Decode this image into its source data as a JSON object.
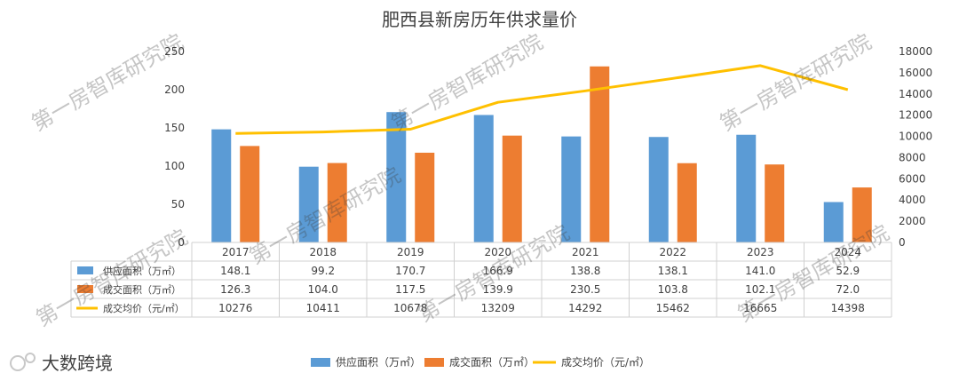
{
  "chart_data": {
    "type": "bar",
    "title": "肥西县新房历年供求量价",
    "categories": [
      "2017",
      "2018",
      "2019",
      "2020",
      "2021",
      "2022",
      "2023",
      "2024"
    ],
    "series": [
      {
        "name": "供应面积（万㎡）",
        "kind": "bar",
        "axis": "left",
        "color": "#5B9BD5",
        "values": [
          148.1,
          99.2,
          170.7,
          166.9,
          138.8,
          138.1,
          141.0,
          52.9
        ],
        "labels": [
          "148.1",
          "99.2",
          "170.7",
          "166.9",
          "138.8",
          "138.1",
          "141.0",
          "52.9"
        ]
      },
      {
        "name": "成交面积（万㎡）",
        "kind": "bar",
        "axis": "left",
        "color": "#ED7D31",
        "values": [
          126.3,
          104.0,
          117.5,
          139.9,
          230.5,
          103.8,
          102.1,
          72.0
        ],
        "labels": [
          "126.3",
          "104.0",
          "117.5",
          "139.9",
          "230.5",
          "103.8",
          "102.1",
          "72.0"
        ]
      },
      {
        "name": "成交均价（元/㎡）",
        "kind": "line",
        "axis": "right",
        "color": "#FFC000",
        "values": [
          10276,
          10411,
          10678,
          13209,
          14292,
          15462,
          16665,
          14398
        ],
        "labels": [
          "10276",
          "10411",
          "10678",
          "13209",
          "14292",
          "15462",
          "16665",
          "14398"
        ]
      }
    ],
    "y_left": {
      "ylim": [
        0,
        250
      ],
      "ticks": [
        "0",
        "50",
        "100",
        "150",
        "200",
        "250"
      ]
    },
    "y_right": {
      "ylim": [
        0,
        18000
      ],
      "ticks": [
        "0",
        "2000",
        "4000",
        "6000",
        "8000",
        "10000",
        "12000",
        "14000",
        "16000",
        "18000"
      ]
    },
    "grid": false,
    "legend": "bottom-center",
    "data_table": true,
    "watermark": "第一房智库研究院",
    "brand": "大数跨境"
  }
}
